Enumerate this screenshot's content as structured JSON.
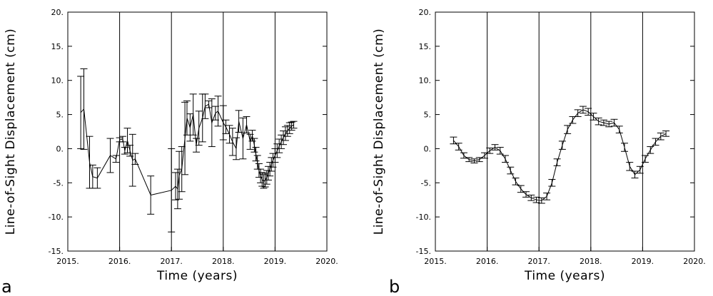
{
  "chart_data": [
    {
      "type": "line",
      "panel_label": "a",
      "xlabel": "Time (years)",
      "ylabel": "Line-of-Sight Displacement (cm)",
      "xlim": [
        2015.0,
        2020.0
      ],
      "ylim": [
        -15,
        20
      ],
      "x_tick_labels": [
        "2015.",
        "2016.",
        "2017.",
        "2018.",
        "2019.",
        "2020."
      ],
      "y_tick_labels": [
        "-15.",
        "-10.",
        "-5.",
        "0.",
        "5.",
        "10.",
        "15.",
        "20."
      ],
      "vertical_grid": [
        2016,
        2017,
        2018,
        2019
      ],
      "error_bars": true,
      "series": [
        {
          "points": [
            [
              2015.25,
              5.3,
              5.3
            ],
            [
              2015.31,
              5.8,
              5.9
            ],
            [
              2015.42,
              -2.0,
              3.8
            ],
            [
              2015.48,
              -4.1,
              1.7
            ],
            [
              2015.57,
              -4.3,
              1.5
            ],
            [
              2015.82,
              -1.0,
              2.5
            ],
            [
              2015.93,
              -1.5,
              0.5
            ],
            [
              2016.0,
              1.3,
              0.3
            ],
            [
              2016.06,
              1.4,
              0.4
            ],
            [
              2016.1,
              -0.3,
              0.5
            ],
            [
              2016.15,
              1.2,
              1.8
            ],
            [
              2016.2,
              -0.3,
              0.8
            ],
            [
              2016.25,
              -1.7,
              3.8
            ],
            [
              2016.3,
              -1.5,
              0.8
            ],
            [
              2016.6,
              -6.8,
              2.8
            ],
            [
              2017.0,
              -6.1,
              6.1
            ],
            [
              2017.08,
              -5.5,
              2.0
            ],
            [
              2017.12,
              -5.9,
              2.9
            ],
            [
              2017.15,
              -3.9,
              3.5
            ],
            [
              2017.2,
              -3.0,
              3.3
            ],
            [
              2017.26,
              1.5,
              5.3
            ],
            [
              2017.3,
              4.5,
              2.5
            ],
            [
              2017.36,
              3.1,
              2.0
            ],
            [
              2017.42,
              5.0,
              3.0
            ],
            [
              2017.48,
              0.5,
              1.0
            ],
            [
              2017.53,
              3.0,
              2.5
            ],
            [
              2017.6,
              4.5,
              3.5
            ],
            [
              2017.65,
              6.2,
              1.8
            ],
            [
              2017.72,
              6.5,
              0.5
            ],
            [
              2017.78,
              3.8,
              3.5
            ],
            [
              2017.85,
              5.2,
              1.0
            ],
            [
              2017.9,
              5.5,
              2.2
            ],
            [
              2018.0,
              3.8,
              2.5
            ],
            [
              2018.05,
              3.2,
              1.0
            ],
            [
              2018.12,
              2.1,
              1.3
            ],
            [
              2018.18,
              1.0,
              2.0
            ],
            [
              2018.25,
              0.0,
              1.6
            ],
            [
              2018.3,
              4.0,
              1.6
            ],
            [
              2018.38,
              1.5,
              3.0
            ],
            [
              2018.45,
              3.5,
              1.2
            ],
            [
              2018.52,
              1.0,
              1.1
            ],
            [
              2018.56,
              1.9,
              0.8
            ],
            [
              2018.6,
              0.5,
              1.0
            ],
            [
              2018.63,
              -0.8,
              1.0
            ],
            [
              2018.66,
              -2.0,
              1.0
            ],
            [
              2018.69,
              -3.2,
              1.0
            ],
            [
              2018.72,
              -4.0,
              1.0
            ],
            [
              2018.75,
              -4.5,
              1.0
            ],
            [
              2018.78,
              -4.8,
              1.0
            ],
            [
              2018.81,
              -4.6,
              1.0
            ],
            [
              2018.84,
              -4.2,
              1.0
            ],
            [
              2018.87,
              -3.6,
              1.0
            ],
            [
              2018.9,
              -3.0,
              1.0
            ],
            [
              2018.93,
              -2.3,
              1.0
            ],
            [
              2018.96,
              -1.7,
              1.0
            ],
            [
              2019.0,
              -1.0,
              1.0
            ],
            [
              2019.04,
              -0.3,
              1.0
            ],
            [
              2019.08,
              0.4,
              1.0
            ],
            [
              2019.12,
              1.0,
              1.0
            ],
            [
              2019.16,
              1.6,
              1.0
            ],
            [
              2019.2,
              2.2,
              1.0
            ],
            [
              2019.24,
              2.6,
              0.8
            ],
            [
              2019.28,
              3.0,
              0.8
            ],
            [
              2019.32,
              3.3,
              0.6
            ],
            [
              2019.36,
              3.5,
              0.5
            ]
          ]
        }
      ]
    },
    {
      "type": "line",
      "panel_label": "b",
      "xlabel": "Time (years)",
      "ylabel": "Line-of-Sight Displacement (cm)",
      "xlim": [
        2015.0,
        2020.0
      ],
      "ylim": [
        -15,
        20
      ],
      "x_tick_labels": [
        "2015.",
        "2016.",
        "2017.",
        "2018.",
        "2019.",
        "2020."
      ],
      "y_tick_labels": [
        "-15.",
        "-10.",
        "-5.",
        "0.",
        "5.",
        "10.",
        "15.",
        "20."
      ],
      "vertical_grid": [
        2016,
        2017,
        2018,
        2019
      ],
      "error_bars": true,
      "series": [
        {
          "points": [
            [
              2015.35,
              1.2,
              0.5
            ],
            [
              2015.45,
              0.3,
              0.5
            ],
            [
              2015.55,
              -1.0,
              0.4
            ],
            [
              2015.65,
              -1.6,
              0.3
            ],
            [
              2015.75,
              -1.8,
              0.3
            ],
            [
              2015.85,
              -1.6,
              0.3
            ],
            [
              2015.95,
              -1.0,
              0.4
            ],
            [
              2016.05,
              -0.3,
              0.4
            ],
            [
              2016.15,
              0.2,
              0.4
            ],
            [
              2016.25,
              -0.3,
              0.5
            ],
            [
              2016.35,
              -1.5,
              0.5
            ],
            [
              2016.45,
              -3.2,
              0.5
            ],
            [
              2016.55,
              -4.8,
              0.5
            ],
            [
              2016.65,
              -5.9,
              0.5
            ],
            [
              2016.75,
              -6.7,
              0.4
            ],
            [
              2016.85,
              -7.2,
              0.4
            ],
            [
              2016.95,
              -7.5,
              0.4
            ],
            [
              2017.05,
              -7.6,
              0.4
            ],
            [
              2017.15,
              -7.0,
              0.5
            ],
            [
              2017.25,
              -5.0,
              0.5
            ],
            [
              2017.35,
              -2.0,
              0.5
            ],
            [
              2017.45,
              0.5,
              0.6
            ],
            [
              2017.55,
              2.8,
              0.6
            ],
            [
              2017.65,
              4.2,
              0.5
            ],
            [
              2017.75,
              5.2,
              0.5
            ],
            [
              2017.85,
              5.7,
              0.5
            ],
            [
              2017.95,
              5.4,
              0.5
            ],
            [
              2018.05,
              4.7,
              0.5
            ],
            [
              2018.15,
              4.0,
              0.5
            ],
            [
              2018.25,
              3.8,
              0.4
            ],
            [
              2018.35,
              3.6,
              0.4
            ],
            [
              2018.45,
              3.8,
              0.5
            ],
            [
              2018.55,
              2.8,
              0.5
            ],
            [
              2018.65,
              0.2,
              0.6
            ],
            [
              2018.75,
              -2.6,
              0.6
            ],
            [
              2018.85,
              -3.8,
              0.5
            ],
            [
              2018.95,
              -3.1,
              0.5
            ],
            [
              2019.05,
              -1.5,
              0.5
            ],
            [
              2019.15,
              -0.2,
              0.5
            ],
            [
              2019.25,
              1.0,
              0.5
            ],
            [
              2019.35,
              1.8,
              0.5
            ],
            [
              2019.45,
              2.2,
              0.4
            ]
          ]
        }
      ]
    }
  ]
}
